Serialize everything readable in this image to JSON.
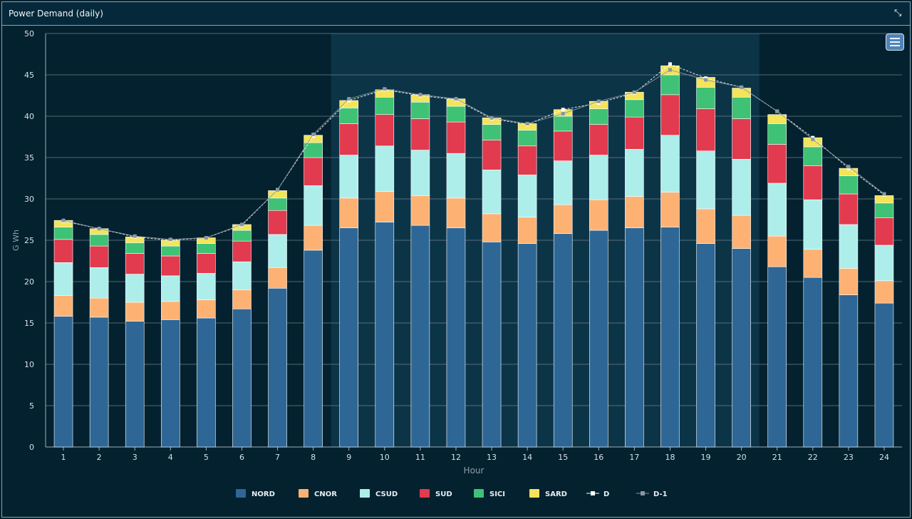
{
  "window": {
    "title": "Power Demand (daily)",
    "collapse_icon": "collapse-arrows-icon",
    "menu_icon": "hamburger-menu-icon"
  },
  "colors": {
    "NORD": "#2e6795",
    "CNOR": "#fdb274",
    "CSUD": "#adeeea",
    "SUD": "#e23a4e",
    "SICI": "#3fc275",
    "SARD": "#f3e458",
    "D": "#ffffff",
    "D-1": "#8b96a0",
    "background": "#03212f",
    "highlight_band": "#0c3447",
    "grid": "#6f7f88"
  },
  "chart_data": {
    "type": "bar",
    "stacked": true,
    "xlabel": "Hour",
    "ylabel": "G Wh",
    "ylim": [
      0,
      50
    ],
    "yticks": [
      0,
      5,
      10,
      15,
      20,
      25,
      30,
      35,
      40,
      45,
      50
    ],
    "grid": true,
    "legend_position": "bottom-center",
    "highlight_band_hours": [
      9,
      20
    ],
    "categories": [
      "1",
      "2",
      "3",
      "4",
      "5",
      "6",
      "7",
      "8",
      "9",
      "10",
      "11",
      "12",
      "13",
      "14",
      "15",
      "16",
      "17",
      "18",
      "19",
      "20",
      "21",
      "22",
      "23",
      "24"
    ],
    "series": [
      {
        "name": "NORD",
        "values": [
          15.8,
          15.7,
          15.2,
          15.4,
          15.6,
          16.7,
          19.2,
          23.8,
          26.5,
          27.2,
          26.8,
          26.5,
          24.8,
          24.6,
          25.8,
          26.2,
          26.5,
          26.6,
          24.6,
          24.0,
          21.8,
          20.5,
          18.4,
          17.4
        ]
      },
      {
        "name": "CNOR",
        "values": [
          2.5,
          2.3,
          2.3,
          2.2,
          2.2,
          2.3,
          2.5,
          3.0,
          3.6,
          3.7,
          3.6,
          3.6,
          3.4,
          3.2,
          3.5,
          3.7,
          3.8,
          4.2,
          4.2,
          4.0,
          3.7,
          3.4,
          3.2,
          2.7
        ]
      },
      {
        "name": "CSUD",
        "values": [
          4.0,
          3.7,
          3.4,
          3.1,
          3.2,
          3.4,
          4.0,
          4.8,
          5.2,
          5.5,
          5.5,
          5.4,
          5.3,
          5.1,
          5.3,
          5.4,
          5.7,
          6.9,
          7.0,
          6.8,
          6.4,
          6.0,
          5.3,
          4.3
        ]
      },
      {
        "name": "SUD",
        "values": [
          2.8,
          2.6,
          2.5,
          2.4,
          2.4,
          2.5,
          2.9,
          3.4,
          3.8,
          3.8,
          3.8,
          3.8,
          3.6,
          3.5,
          3.6,
          3.7,
          3.9,
          4.9,
          5.1,
          4.9,
          4.7,
          4.1,
          3.7,
          3.3
        ]
      },
      {
        "name": "SICI",
        "values": [
          1.5,
          1.4,
          1.3,
          1.2,
          1.2,
          1.3,
          1.5,
          1.8,
          1.9,
          2.1,
          2.0,
          1.9,
          1.9,
          1.9,
          1.8,
          1.9,
          2.1,
          2.4,
          2.6,
          2.6,
          2.5,
          2.3,
          2.2,
          1.8
        ]
      },
      {
        "name": "SARD",
        "values": [
          0.8,
          0.7,
          0.7,
          0.7,
          0.7,
          0.7,
          0.9,
          0.9,
          0.9,
          0.9,
          0.9,
          0.9,
          0.8,
          0.8,
          0.8,
          0.9,
          0.9,
          1.1,
          1.2,
          1.1,
          1.1,
          1.1,
          0.9,
          0.9
        ]
      }
    ],
    "lines": [
      {
        "name": "D",
        "values": [
          27.3,
          26.4,
          25.4,
          25.0,
          25.3,
          26.8,
          31.1,
          37.6,
          41.9,
          43.2,
          42.5,
          42.0,
          39.7,
          39.0,
          40.8,
          41.6,
          42.8,
          46.3,
          44.6,
          43.5,
          40.6,
          37.4,
          33.7,
          30.5
        ]
      },
      {
        "name": "D-1",
        "values": [
          27.4,
          26.4,
          25.5,
          25.1,
          25.3,
          26.9,
          31.1,
          37.8,
          42.1,
          43.3,
          42.6,
          42.1,
          39.8,
          39.1,
          40.3,
          41.8,
          42.9,
          45.6,
          44.4,
          43.5,
          40.6,
          37.2,
          33.9,
          30.6
        ]
      }
    ]
  }
}
